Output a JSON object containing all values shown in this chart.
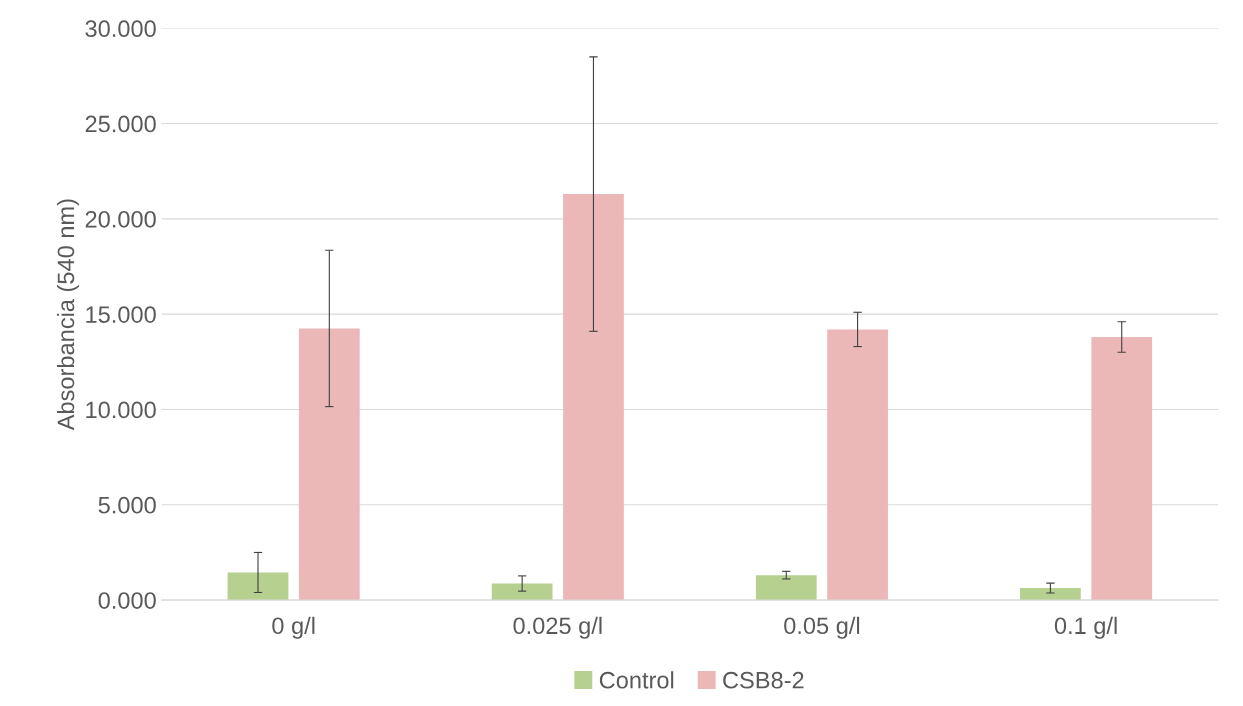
{
  "chart_data": {
    "type": "bar",
    "ylabel": "Absorbancia (540 nm)",
    "categories": [
      "0 g/l",
      "0.025 g/l",
      "0.05 g/l",
      "0.1 g/l"
    ],
    "series": [
      {
        "name": "Control",
        "color": "#b6d08f",
        "values": [
          1.45,
          0.87,
          1.31,
          0.63
        ],
        "errors": [
          1.05,
          0.4,
          0.2,
          0.26
        ]
      },
      {
        "name": "CSB8-2",
        "color": "#ebb8b7",
        "values": [
          14.25,
          21.3,
          14.2,
          13.8
        ],
        "errors": [
          4.1,
          7.2,
          0.9,
          0.8
        ]
      }
    ],
    "ylim": [
      0,
      30
    ],
    "yticks": [
      {
        "value": 0,
        "label": "0.000"
      },
      {
        "value": 5,
        "label": "5.000"
      },
      {
        "value": 10,
        "label": "10.000"
      },
      {
        "value": 15,
        "label": "15.000"
      },
      {
        "value": 20,
        "label": "20.000"
      },
      {
        "value": 25,
        "label": "25.000"
      },
      {
        "value": 30,
        "label": "30.000"
      }
    ],
    "grid": "y",
    "legend": "bottom"
  }
}
